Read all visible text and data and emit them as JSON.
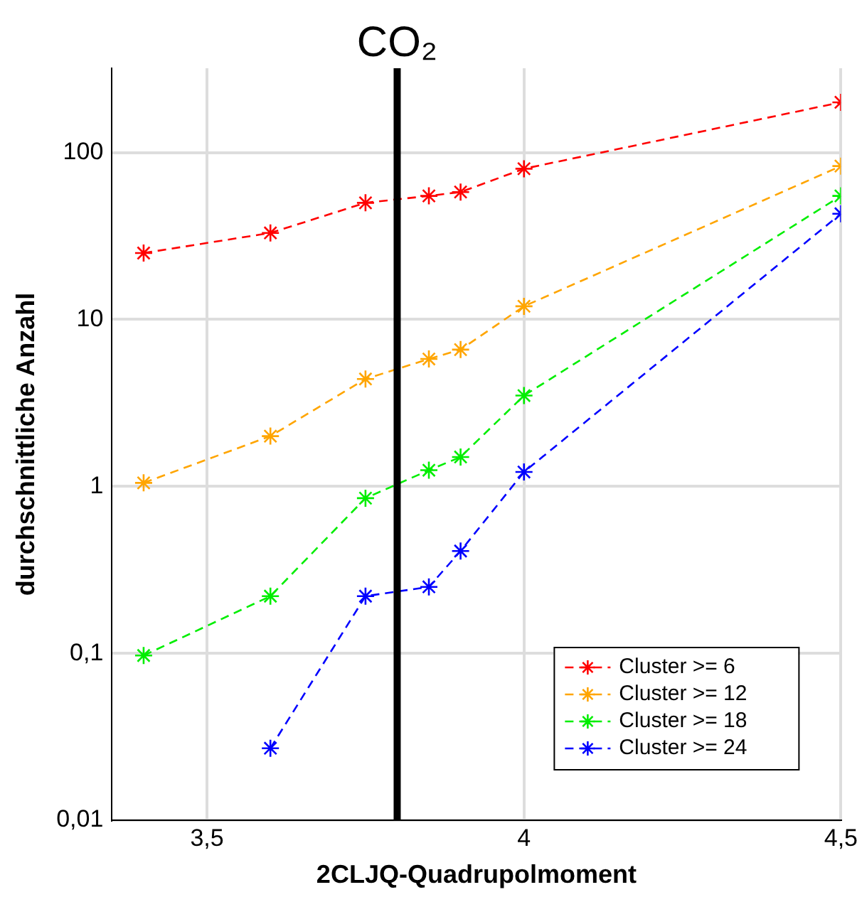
{
  "chart_data": {
    "type": "line",
    "xlabel": "2CLJQ-Quadrupolmoment",
    "ylabel": "durchschnittliche Anzahl",
    "x": [
      3.4,
      3.6,
      3.75,
      3.85,
      3.9,
      4.0,
      4.5
    ],
    "series": [
      {
        "name": "Cluster >= 6",
        "color": "#ff0000",
        "values": [
          25,
          33,
          50,
          55,
          58,
          80,
          200
        ]
      },
      {
        "name": "Cluster >= 12",
        "color": "#ffa500",
        "values": [
          1.05,
          2.0,
          4.4,
          5.8,
          6.6,
          12,
          83
        ]
      },
      {
        "name": "Cluster >= 18",
        "color": "#00ee00",
        "values": [
          0.097,
          0.22,
          0.85,
          1.25,
          1.5,
          3.5,
          55
        ]
      },
      {
        "name": "Cluster >= 24",
        "color": "#0000ff",
        "values": [
          null,
          0.027,
          0.22,
          0.25,
          0.41,
          1.22,
          43
        ]
      }
    ],
    "xlim": [
      3.35,
      4.5
    ],
    "xticks": [
      {
        "value": 3.5,
        "label": "3,5"
      },
      4,
      {
        "value": 4.5,
        "label": "4,5"
      }
    ],
    "ylim": [
      0.01,
      320
    ],
    "yticks": [
      {
        "value": 0.01,
        "label": "0,01"
      },
      {
        "value": 0.1,
        "label": "0,1"
      },
      1,
      10,
      100
    ],
    "log": "y",
    "grid": true,
    "legend": "bottom right",
    "marker": "cross",
    "line_style": "dashed",
    "ref_lines": [
      {
        "axis": "x",
        "value": 3.8,
        "label": "CO₂",
        "color": "#000000"
      }
    ]
  }
}
